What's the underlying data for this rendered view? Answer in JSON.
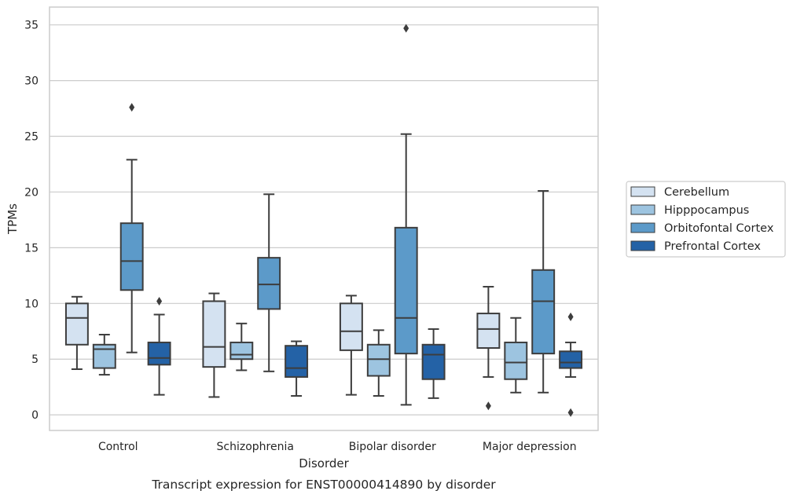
{
  "caption": "Transcript expression for ENST00000414890 by disorder",
  "chart_data": {
    "type": "boxplot",
    "xlabel": "Disorder",
    "ylabel": "TPMs",
    "ylim": [
      -1.4,
      36.6
    ],
    "yticks": [
      0,
      5,
      10,
      15,
      20,
      25,
      30,
      35
    ],
    "grid": "horizontal",
    "legend_position": "right",
    "categories": [
      "Control",
      "Schizophrenia",
      "Bipolar disorder",
      "Major depression"
    ],
    "series": [
      {
        "name": "Cerebellum",
        "color": "#d4e2f1",
        "boxes": [
          {
            "whisker_low": 4.1,
            "q1": 6.3,
            "median": 8.7,
            "q3": 10.0,
            "whisker_high": 10.6,
            "outliers": []
          },
          {
            "whisker_low": 1.6,
            "q1": 4.3,
            "median": 6.1,
            "q3": 10.2,
            "whisker_high": 10.9,
            "outliers": []
          },
          {
            "whisker_low": 1.8,
            "q1": 5.8,
            "median": 7.5,
            "q3": 10.0,
            "whisker_high": 10.7,
            "outliers": []
          },
          {
            "whisker_low": 3.4,
            "q1": 6.0,
            "median": 7.7,
            "q3": 9.1,
            "whisker_high": 11.5,
            "outliers": [
              0.8
            ]
          }
        ]
      },
      {
        "name": "Hipppocampus",
        "color": "#9dc4e0",
        "boxes": [
          {
            "whisker_low": 3.6,
            "q1": 4.2,
            "median": 5.9,
            "q3": 6.3,
            "whisker_high": 7.2,
            "outliers": []
          },
          {
            "whisker_low": 4.0,
            "q1": 5.0,
            "median": 5.4,
            "q3": 6.5,
            "whisker_high": 8.2,
            "outliers": []
          },
          {
            "whisker_low": 1.7,
            "q1": 3.5,
            "median": 5.0,
            "q3": 6.3,
            "whisker_high": 7.6,
            "outliers": []
          },
          {
            "whisker_low": 2.0,
            "q1": 3.2,
            "median": 4.7,
            "q3": 6.5,
            "whisker_high": 8.7,
            "outliers": []
          }
        ]
      },
      {
        "name": "Orbitofontal Cortex",
        "color": "#5c9ac9",
        "boxes": [
          {
            "whisker_low": 5.6,
            "q1": 11.2,
            "median": 13.8,
            "q3": 17.2,
            "whisker_high": 22.9,
            "outliers": [
              27.6
            ]
          },
          {
            "whisker_low": 3.9,
            "q1": 9.5,
            "median": 11.7,
            "q3": 14.1,
            "whisker_high": 19.8,
            "outliers": []
          },
          {
            "whisker_low": 0.9,
            "q1": 5.5,
            "median": 8.7,
            "q3": 16.8,
            "whisker_high": 25.2,
            "outliers": [
              34.7
            ]
          },
          {
            "whisker_low": 2.0,
            "q1": 5.5,
            "median": 10.2,
            "q3": 13.0,
            "whisker_high": 20.1,
            "outliers": []
          }
        ]
      },
      {
        "name": "Prefrontal Cortex",
        "color": "#2462a6",
        "boxes": [
          {
            "whisker_low": 1.8,
            "q1": 4.5,
            "median": 5.1,
            "q3": 6.5,
            "whisker_high": 9.0,
            "outliers": [
              10.2
            ]
          },
          {
            "whisker_low": 1.7,
            "q1": 3.4,
            "median": 4.2,
            "q3": 6.2,
            "whisker_high": 6.6,
            "outliers": []
          },
          {
            "whisker_low": 1.5,
            "q1": 3.2,
            "median": 5.4,
            "q3": 6.3,
            "whisker_high": 7.7,
            "outliers": []
          },
          {
            "whisker_low": 3.4,
            "q1": 4.2,
            "median": 4.7,
            "q3": 5.7,
            "whisker_high": 6.5,
            "outliers": [
              8.8,
              0.2
            ]
          }
        ]
      }
    ]
  }
}
